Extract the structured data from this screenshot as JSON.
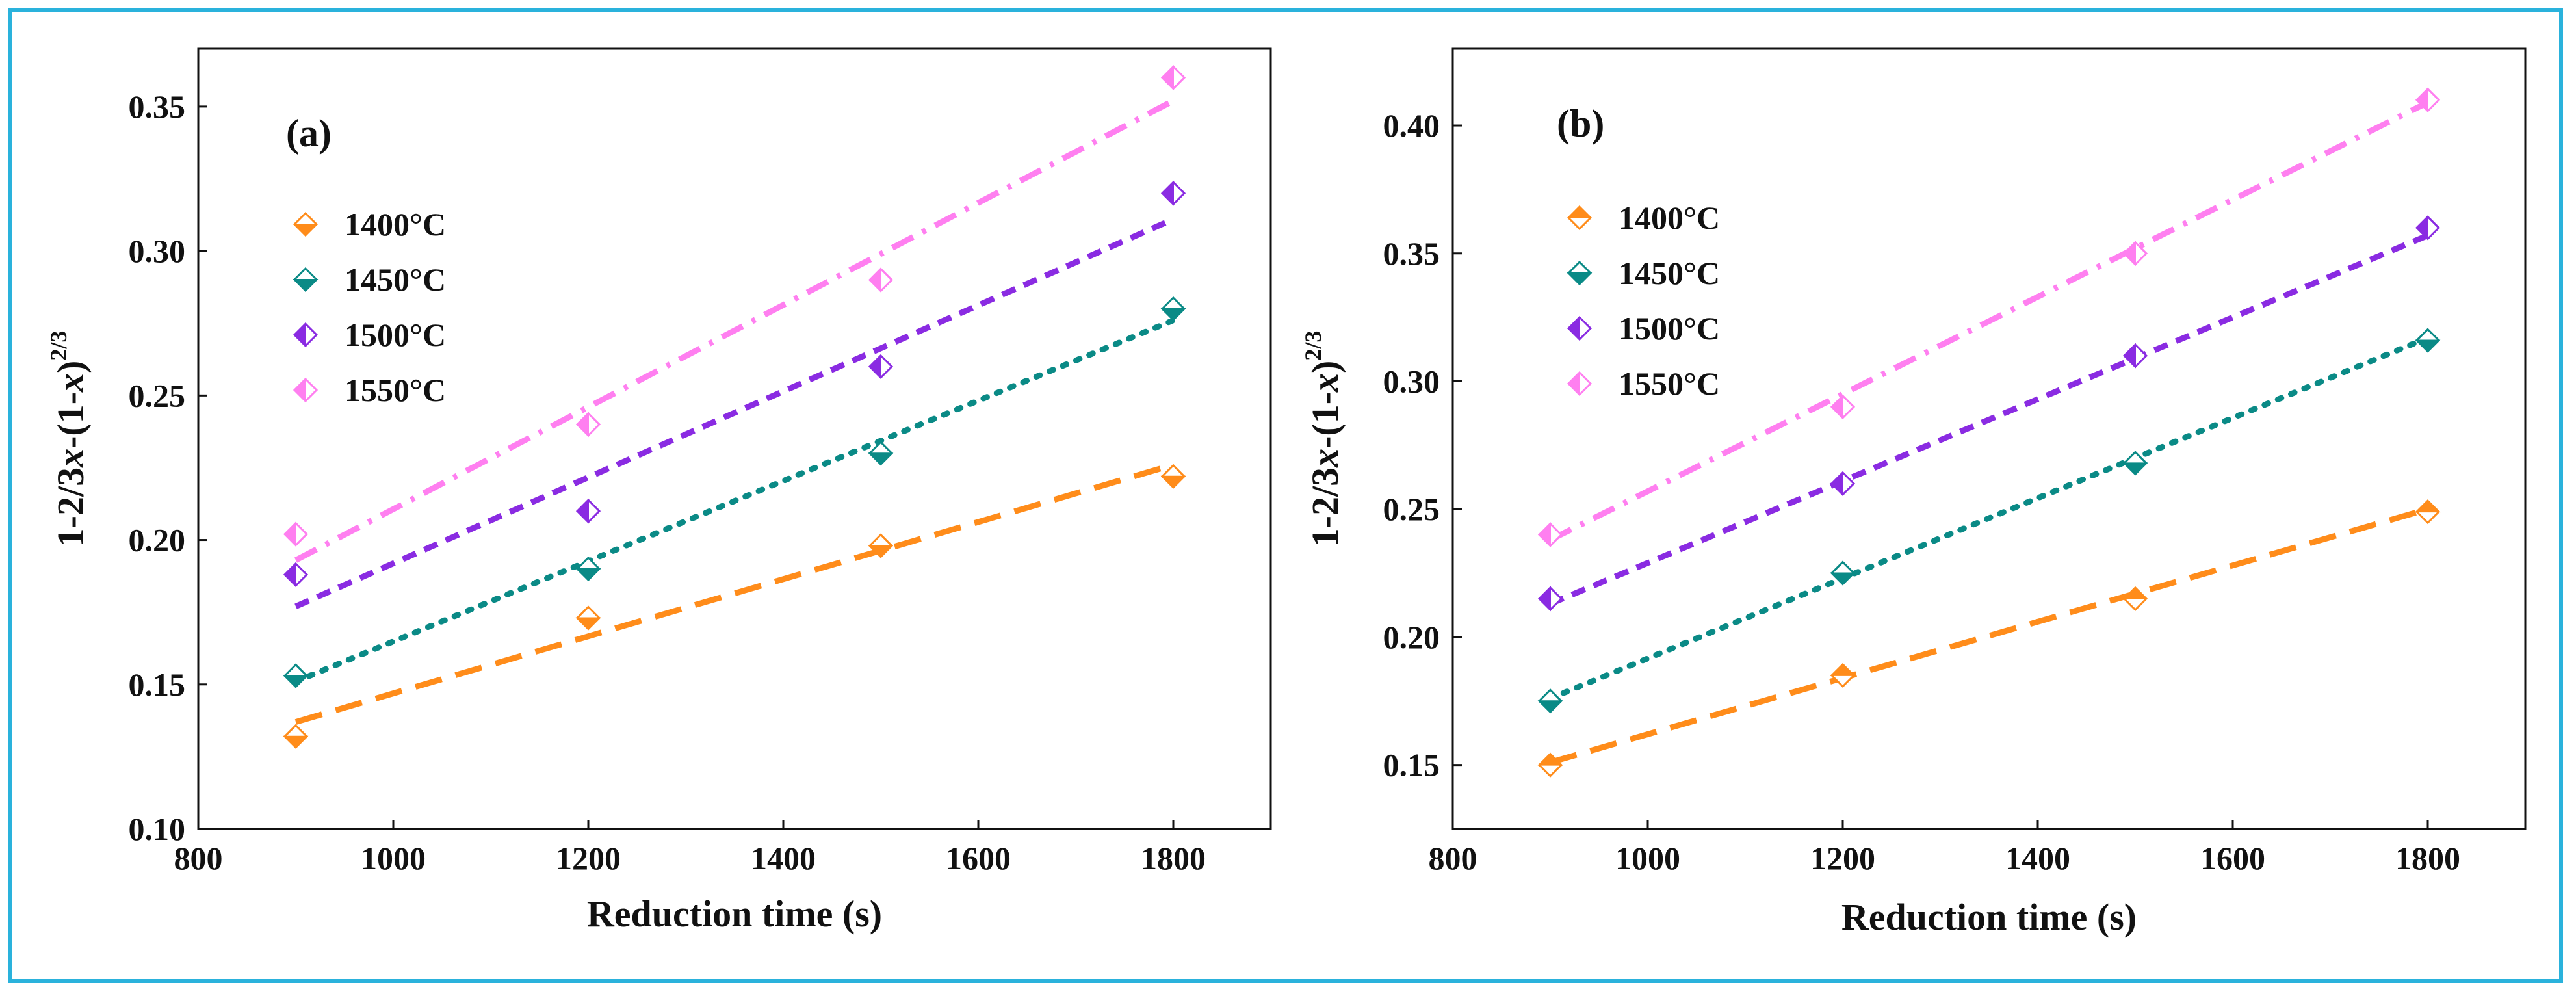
{
  "colors": {
    "border": "#2ab2dc",
    "1400": "#ff8c1a",
    "1450": "#0a8a86",
    "1500": "#8a2be2",
    "1550": "#ff7ff0"
  },
  "chart_data": [
    {
      "type": "scatter",
      "panel_label": "(a)",
      "xlabel": "Reduction time (s)",
      "ylabel": "1-2/3x-(1-x)^2/3",
      "xlim": [
        800,
        1900
      ],
      "ylim": [
        0.1,
        0.37
      ],
      "xticks": [
        800,
        1000,
        1200,
        1400,
        1600,
        1800
      ],
      "xtick_labels": [
        "800",
        "1000",
        "1200",
        "1400",
        "1600",
        "1800"
      ],
      "yticks": [
        0.1,
        0.15,
        0.2,
        0.25,
        0.3,
        0.35
      ],
      "ytick_labels": [
        "0.10",
        "0.15",
        "0.20",
        "0.25",
        "0.30",
        "0.35"
      ],
      "legend_position": "upper-left",
      "series": [
        {
          "name": "1400°C",
          "x": [
            900,
            1200,
            1500,
            1800
          ],
          "values": [
            0.132,
            0.173,
            0.198,
            0.222
          ],
          "fit": [
            0.137,
            0.226
          ],
          "line_style": "dashed",
          "color_key": "1400",
          "marker": "diamond-bottom"
        },
        {
          "name": "1450°C",
          "x": [
            900,
            1200,
            1500,
            1800
          ],
          "values": [
            0.153,
            0.19,
            0.23,
            0.28
          ],
          "fit": [
            0.151,
            0.276
          ],
          "line_style": "dotted",
          "color_key": "1450",
          "marker": "diamond-bottom"
        },
        {
          "name": "1500°C",
          "x": [
            900,
            1200,
            1500,
            1800
          ],
          "values": [
            0.188,
            0.21,
            0.26,
            0.32
          ],
          "fit": [
            0.177,
            0.311
          ],
          "line_style": "short-dashed",
          "color_key": "1500",
          "marker": "diamond-left"
        },
        {
          "name": "1550°C",
          "x": [
            900,
            1200,
            1500,
            1800
          ],
          "values": [
            0.202,
            0.24,
            0.29,
            0.36
          ],
          "fit": [
            0.193,
            0.352
          ],
          "line_style": "dash-dot",
          "color_key": "1550",
          "marker": "diamond-left"
        }
      ]
    },
    {
      "type": "scatter",
      "panel_label": "(b)",
      "xlabel": "Reduction time (s)",
      "ylabel": "1-2/3x-(1-x)^2/3",
      "xlim": [
        800,
        1900
      ],
      "ylim": [
        0.125,
        0.43
      ],
      "xticks": [
        800,
        1000,
        1200,
        1400,
        1600,
        1800
      ],
      "xtick_labels": [
        "800",
        "1000",
        "1200",
        "1400",
        "1600",
        "1800"
      ],
      "yticks": [
        0.15,
        0.2,
        0.25,
        0.3,
        0.35,
        0.4
      ],
      "ytick_labels": [
        "0.15",
        "0.20",
        "0.25",
        "0.30",
        "0.35",
        "0.40"
      ],
      "legend_position": "upper-left",
      "series": [
        {
          "name": "1400°C",
          "x": [
            900,
            1200,
            1500,
            1800
          ],
          "values": [
            0.15,
            0.185,
            0.215,
            0.249
          ],
          "fit": [
            0.151,
            0.25
          ],
          "line_style": "dashed",
          "color_key": "1400",
          "marker": "diamond-top"
        },
        {
          "name": "1450°C",
          "x": [
            900,
            1200,
            1500,
            1800
          ],
          "values": [
            0.175,
            0.225,
            0.268,
            0.316
          ],
          "fit": [
            0.176,
            0.317
          ],
          "line_style": "dotted",
          "color_key": "1450",
          "marker": "diamond-bottom"
        },
        {
          "name": "1500°C",
          "x": [
            900,
            1200,
            1500,
            1800
          ],
          "values": [
            0.215,
            0.26,
            0.31,
            0.36
          ],
          "fit": [
            0.213,
            0.357
          ],
          "line_style": "short-dashed",
          "color_key": "1500",
          "marker": "diamond-left"
        },
        {
          "name": "1550°C",
          "x": [
            900,
            1200,
            1500,
            1800
          ],
          "values": [
            0.24,
            0.29,
            0.35,
            0.41
          ],
          "fit": [
            0.238,
            0.409
          ],
          "line_style": "dash-dot",
          "color_key": "1550",
          "marker": "diamond-left"
        }
      ]
    }
  ]
}
